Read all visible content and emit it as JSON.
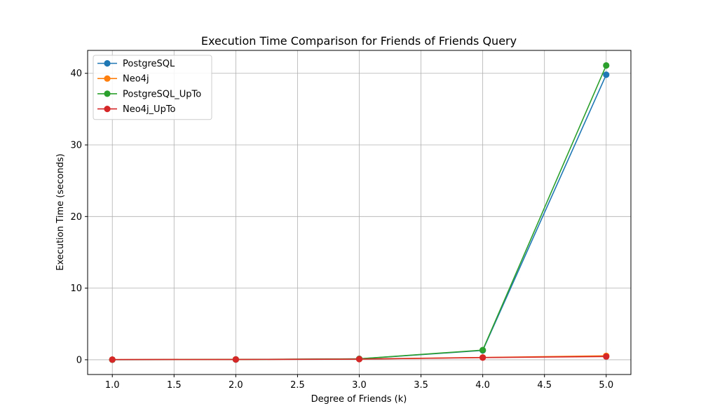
{
  "chart_data": {
    "type": "line",
    "title": "Execution Time Comparison for Friends of Friends Query",
    "xlabel": "Degree of Friends (k)",
    "ylabel": "Execution Time (seconds)",
    "x": [
      1,
      2,
      3,
      4,
      5
    ],
    "xlim": [
      0.8,
      5.2
    ],
    "ylim": [
      -2.06,
      43.2
    ],
    "xticks": [
      1.0,
      1.5,
      2.0,
      2.5,
      3.0,
      3.5,
      4.0,
      4.5,
      5.0
    ],
    "xtick_labels": [
      "1.0",
      "1.5",
      "2.0",
      "2.5",
      "3.0",
      "3.5",
      "4.0",
      "4.5",
      "5.0"
    ],
    "yticks": [
      0,
      10,
      20,
      30,
      40
    ],
    "ytick_labels": [
      "0",
      "10",
      "20",
      "30",
      "40"
    ],
    "grid": true,
    "legend_position": "top-left",
    "series": [
      {
        "name": "PostgreSQL",
        "color": "#1f77b4",
        "values": [
          0.01,
          0.03,
          0.12,
          1.3,
          39.8
        ]
      },
      {
        "name": "Neo4j",
        "color": "#ff7f0e",
        "values": [
          0.02,
          0.05,
          0.1,
          0.32,
          0.55
        ]
      },
      {
        "name": "PostgreSQL_UpTo",
        "color": "#2ca02c",
        "values": [
          0.01,
          0.04,
          0.13,
          1.35,
          41.1
        ]
      },
      {
        "name": "Neo4j_UpTo",
        "color": "#d62728",
        "values": [
          0.02,
          0.04,
          0.09,
          0.3,
          0.45
        ]
      }
    ]
  }
}
